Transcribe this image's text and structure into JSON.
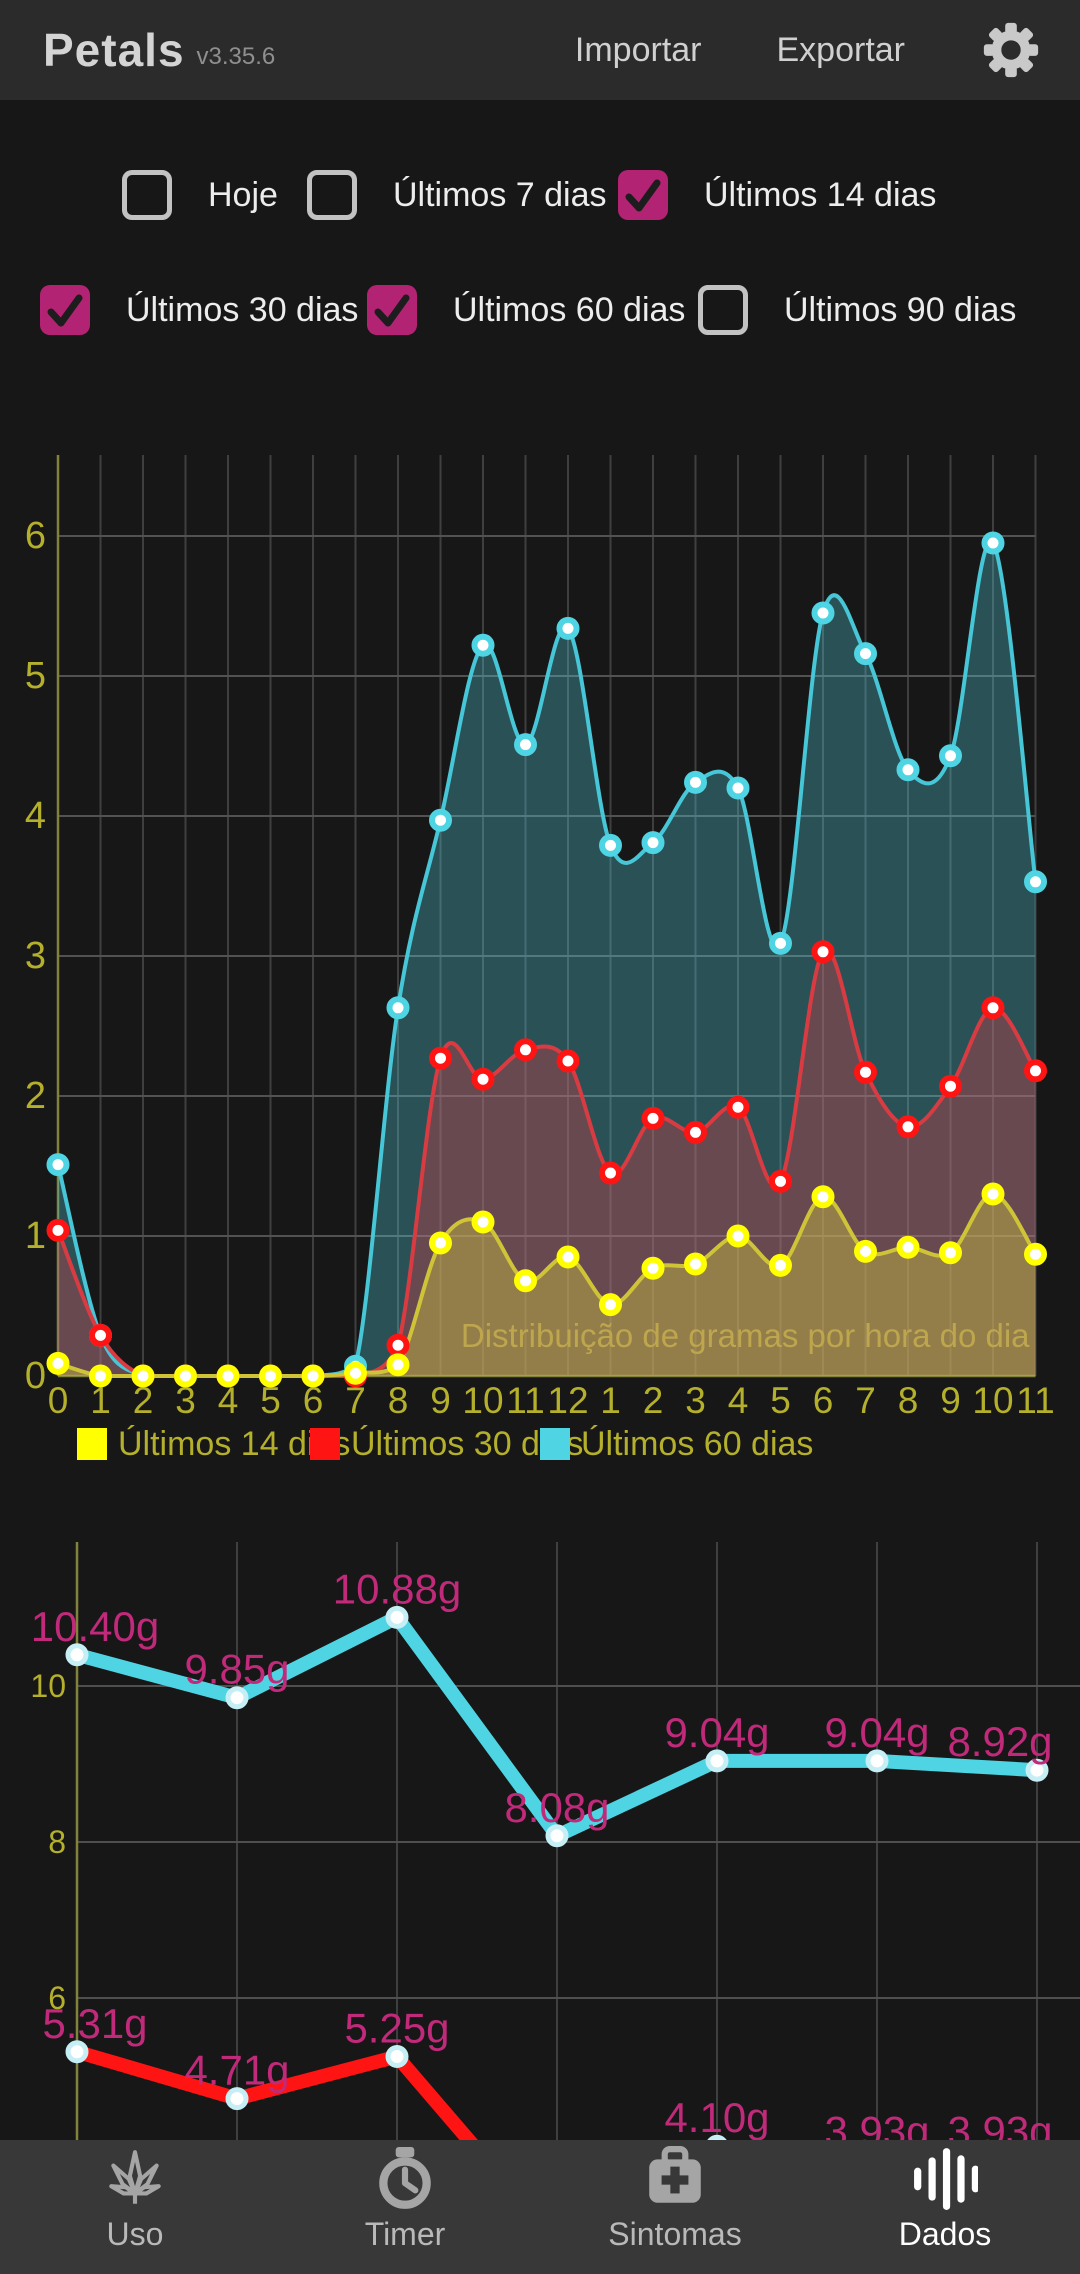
{
  "header": {
    "app_name": "Petals",
    "version": "v3.35.6",
    "actions": [
      {
        "label": "Importar"
      },
      {
        "label": "Exportar"
      }
    ],
    "settings_icon": "gear-icon"
  },
  "filters": [
    {
      "label": "Hoje",
      "checked": false
    },
    {
      "label": "Últimos 7 dias",
      "checked": false
    },
    {
      "label": "Últimos 14 dias",
      "checked": true
    },
    {
      "label": "Últimos 30 dias",
      "checked": true
    },
    {
      "label": "Últimos 60 dias",
      "checked": true
    },
    {
      "label": "Últimos 90 dias",
      "checked": false
    }
  ],
  "colors": {
    "accent_magenta": "#b32374",
    "value_label_magenta": "#c1297a",
    "axis_label_olive": "#b5b02c",
    "chart_yellow": "#ffff00",
    "chart_red": "#ff1414",
    "chart_cyan": "#4fd4e3",
    "header_bg": "#2b2b2b",
    "nav_bg": "#383838",
    "page_bg": "#171717"
  },
  "chart_data": [
    {
      "type": "area",
      "title": "Distribuição de gramas por hora do dia",
      "x_labels": [
        "0",
        "1",
        "2",
        "3",
        "4",
        "5",
        "6",
        "7",
        "8",
        "9",
        "10",
        "11",
        "12",
        "1",
        "2",
        "3",
        "4",
        "5",
        "6",
        "7",
        "8",
        "9",
        "10",
        "11"
      ],
      "yticks": [
        0,
        1,
        2,
        3,
        4,
        5,
        6
      ],
      "ylim": [
        0,
        6.6
      ],
      "grid": true,
      "legend_position": "bottom",
      "series": [
        {
          "name": "Últimos 14 dias",
          "color": "#ffff00",
          "values": [
            0.09,
            0,
            0,
            0,
            0,
            0,
            0,
            0.02,
            0.08,
            0.95,
            1.1,
            0.68,
            0.85,
            0.51,
            0.77,
            0.8,
            1.0,
            0.79,
            1.28,
            0.89,
            0.92,
            0.88,
            1.3,
            0.87
          ]
        },
        {
          "name": "Últimos 30 dias",
          "color": "#ff1414",
          "values": [
            1.04,
            0.29,
            0,
            0,
            0,
            0,
            0,
            0,
            0.22,
            2.27,
            2.12,
            2.33,
            2.25,
            1.45,
            1.84,
            1.74,
            1.92,
            1.39,
            3.03,
            2.17,
            1.78,
            2.07,
            2.63,
            2.18
          ]
        },
        {
          "name": "Últimos 60 dias",
          "color": "#4fd4e3",
          "values": [
            1.51,
            0.29,
            0,
            0,
            0,
            0,
            0,
            0.07,
            2.63,
            3.97,
            5.22,
            4.51,
            5.34,
            3.79,
            3.81,
            4.24,
            4.2,
            3.09,
            5.45,
            5.16,
            4.33,
            4.43,
            5.95,
            3.53
          ]
        }
      ]
    },
    {
      "type": "line",
      "yticks": [
        10,
        8,
        6
      ],
      "grid": true,
      "x_count": 7,
      "label_color": "#c1297a",
      "series": [
        {
          "name": "total-gramas-cyan",
          "color": "#4fd4e3",
          "values": [
            10.4,
            9.85,
            10.88,
            8.08,
            9.04,
            9.04,
            8.92
          ],
          "labels": [
            "10.40g",
            "9.85g",
            "10.88g",
            "8.08g",
            "9.04g",
            "9.04g",
            "8.92g"
          ]
        },
        {
          "name": "total-gramas-red",
          "color": "#ff1414",
          "values": [
            5.31,
            4.71,
            5.25,
            2.86,
            4.1,
            3.93,
            3.93
          ],
          "labels": [
            "5.31g",
            "4.71g",
            "5.25g",
            "",
            "4.10g",
            "3.93g",
            "3.93g"
          ]
        }
      ]
    }
  ],
  "nav": {
    "items": [
      {
        "label": "Uso",
        "icon": "cannabis-leaf-icon",
        "active": false
      },
      {
        "label": "Timer",
        "icon": "stopwatch-icon",
        "active": false
      },
      {
        "label": "Sintomas",
        "icon": "medical-bag-icon",
        "active": false
      },
      {
        "label": "Dados",
        "icon": "equalizer-bars-icon",
        "active": true
      }
    ]
  }
}
